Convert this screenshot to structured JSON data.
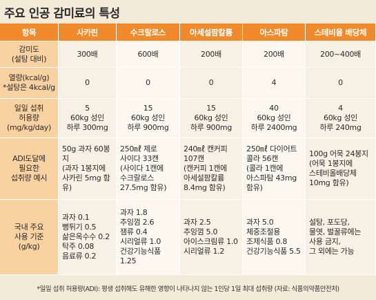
{
  "title": "주요 인공 감미료의 특성",
  "headers": [
    "항목",
    "사카린",
    "수크랄로스",
    "아세설팜칼륨",
    "아스파탐",
    "스테비올 배당체"
  ],
  "rows": [
    {
      "label": "감미도\n(설탕 대비)",
      "values": [
        "300배",
        "600배",
        "200배",
        "200배",
        "200~400배"
      ]
    },
    {
      "label": "열량(kcal/g)\n*설탕은 4kcal/g",
      "values": [
        "0",
        "0",
        "0",
        "4",
        "0"
      ]
    },
    {
      "label": "일일 섭취\n허용량\n(mg/kg/day)",
      "values": [
        "5\n60kg 성인\n하루 300mg",
        "15\n60kg 성인\n하루 900mg",
        "15\n60kg 성인\n하루 900mg",
        "40\n60kg 성인\n하루 2400mg",
        "4\n60kg 성인\n하루 240mg"
      ]
    },
    {
      "label": "ADI도달에\n필요한\n섭취량 예시",
      "values": [
        "50g 과자 60봉지\n(과자 1봉지에\n사카린 5mg 함유)",
        "250㎖ 제로\n사이다 33캔\n(사이다 1캔에\n수크랄로스\n27.5mg 함유)",
        "240㎖ 캔커피\n107캔\n(캔커피 1캔에\n아세설팜칼륨\n8.4mg 함유)",
        "250㎖ 다이어트\n콜라 56캔\n(콜라 1캔에\n아스파탐 43mg\n함유)",
        "100g 어묵 24봉지\n(어묵 1봉지에\n스테비올배당체\n10mg 함유)"
      ]
    },
    {
      "label": "국내 주요\n사용 기준\n(g/kg)",
      "values": [
        "과자 0.1\n뻥튀기 0.5\n삶은옥수수 0.2\n탁주 0.08\n음료류 0.2",
        "과자 1.8\n추잉껌 2.6\n잼류 0.4\n시리얼류 1.0\n건강기능식품 1.25",
        "과자 2.5\n추잉껌 5.0\n아이스크림류 1.0\n시리얼류 1.2",
        "과자 5.0\n체중조절용\n조제식품 0.8\n건강기능식품 5.5",
        "설탕, 포도당,\n물엿, 벌꿀류에는\n사용 금지,\n그 외에는 가능"
      ]
    }
  ],
  "footer": "*일일 섭취 허용량(ADI): 평생 섭취해도 유해한 영향이 나타나지 않는 1인당 1일 최대 섭취량   (자료: 식품의약품안전처)"
}
